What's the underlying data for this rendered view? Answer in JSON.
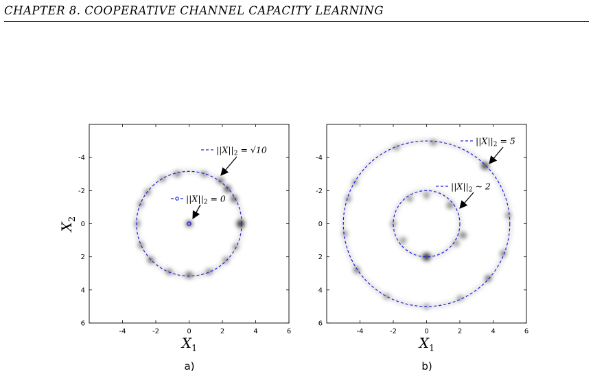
{
  "header": {
    "running_title": "CHAPTER 8.  COOPERATIVE CHANNEL CAPACITY LEARNING"
  },
  "chart_data": [
    {
      "type": "scatter",
      "panel_label": "a)",
      "title": "",
      "xlabel": "X",
      "xlabel_sub": "1",
      "ylabel": "X",
      "ylabel_sub": "2",
      "xlim": [
        -6,
        6
      ],
      "ylim": [
        -6,
        6
      ],
      "y_inverted": true,
      "xticks": [
        "-4",
        "-2",
        "0",
        "2",
        "4",
        "6"
      ],
      "yticks": [
        "-4",
        "-2",
        "0",
        "2",
        "4",
        "6"
      ],
      "grid": false,
      "density_color": "#000000",
      "circles": [
        {
          "name": "||X||2 = √10",
          "legend_main": "||X||",
          "legend_sub": "2",
          "legend_rest": " = √10",
          "radius": 3.162,
          "center": [
            0,
            0
          ],
          "style": "dashed",
          "color": "#1f1fdd"
        },
        {
          "name": "||X||2 = 0",
          "legend_main": "||X||",
          "legend_sub": "2",
          "legend_rest": " = 0",
          "radius": 0,
          "center": [
            0,
            0
          ],
          "style": "marker",
          "color": "#1f1fdd"
        }
      ],
      "density_points": [
        {
          "x": 3.1,
          "y": 0.0,
          "w": 1.0
        },
        {
          "x": 0.0,
          "y": 0.0,
          "w": 0.7
        },
        {
          "x": 2.3,
          "y": -2.1,
          "w": 0.75
        },
        {
          "x": 1.9,
          "y": -2.6,
          "w": 0.6
        },
        {
          "x": 2.7,
          "y": -1.5,
          "w": 0.7
        },
        {
          "x": 0.9,
          "y": -3.0,
          "w": 0.45
        },
        {
          "x": -0.7,
          "y": -3.0,
          "w": 0.5
        },
        {
          "x": -1.6,
          "y": -2.7,
          "w": 0.4
        },
        {
          "x": -2.5,
          "y": -1.9,
          "w": 0.45
        },
        {
          "x": -2.9,
          "y": -1.2,
          "w": 0.4
        },
        {
          "x": -3.1,
          "y": 0.0,
          "w": 0.4
        },
        {
          "x": -2.9,
          "y": 1.3,
          "w": 0.45
        },
        {
          "x": -2.3,
          "y": 2.2,
          "w": 0.6
        },
        {
          "x": -1.2,
          "y": 2.9,
          "w": 0.5
        },
        {
          "x": 0.0,
          "y": 3.1,
          "w": 0.65
        },
        {
          "x": 1.2,
          "y": 2.9,
          "w": 0.5
        },
        {
          "x": 2.2,
          "y": 2.2,
          "w": 0.45
        },
        {
          "x": 2.8,
          "y": 1.4,
          "w": 0.4
        }
      ]
    },
    {
      "type": "scatter",
      "panel_label": "b)",
      "title": "",
      "xlabel": "X",
      "xlabel_sub": "1",
      "ylabel": "",
      "ylabel_sub": "",
      "xlim": [
        -6,
        6
      ],
      "ylim": [
        -6,
        6
      ],
      "y_inverted": true,
      "xticks": [
        "-4",
        "-2",
        "0",
        "2",
        "4",
        "6"
      ],
      "yticks": [
        "-4",
        "-2",
        "0",
        "2",
        "4",
        "6"
      ],
      "grid": false,
      "density_color": "#000000",
      "circles": [
        {
          "name": "||X||2 = 5",
          "legend_main": "||X||",
          "legend_sub": "2",
          "legend_rest": " = 5",
          "radius": 5,
          "center": [
            0,
            0
          ],
          "style": "dashed",
          "color": "#1f1fdd"
        },
        {
          "name": "||X||2 ~ 2",
          "legend_main": "||X||",
          "legend_sub": "2",
          "legend_rest": " ~ 2",
          "radius": 2,
          "center": [
            0,
            0
          ],
          "style": "dashed",
          "color": "#1f1fdd"
        }
      ],
      "density_points": [
        {
          "x": 0.0,
          "y": 2.0,
          "w": 1.0
        },
        {
          "x": 3.5,
          "y": -3.5,
          "w": 0.85
        },
        {
          "x": 3.7,
          "y": 3.3,
          "w": 0.6
        },
        {
          "x": -4.2,
          "y": 2.8,
          "w": 0.55
        },
        {
          "x": -4.7,
          "y": -1.5,
          "w": 0.4
        },
        {
          "x": -4.3,
          "y": -2.5,
          "w": 0.35
        },
        {
          "x": -4.9,
          "y": 0.6,
          "w": 0.35
        },
        {
          "x": 0.4,
          "y": -4.9,
          "w": 0.45
        },
        {
          "x": -1.8,
          "y": -4.6,
          "w": 0.35
        },
        {
          "x": 4.6,
          "y": 1.8,
          "w": 0.5
        },
        {
          "x": 4.9,
          "y": -0.5,
          "w": 0.4
        },
        {
          "x": 2.0,
          "y": 4.5,
          "w": 0.35
        },
        {
          "x": -2.4,
          "y": 4.4,
          "w": 0.35
        },
        {
          "x": 0.0,
          "y": 5.0,
          "w": 0.3
        },
        {
          "x": 2.2,
          "y": 0.7,
          "w": 0.6
        },
        {
          "x": 1.4,
          "y": -1.1,
          "w": 0.55
        },
        {
          "x": 0.0,
          "y": -1.7,
          "w": 0.45
        },
        {
          "x": -1.0,
          "y": -1.5,
          "w": 0.4
        },
        {
          "x": -1.4,
          "y": 1.0,
          "w": 0.45
        },
        {
          "x": -2.0,
          "y": 0.0,
          "w": 0.35
        },
        {
          "x": 1.8,
          "y": 1.2,
          "w": 0.4
        }
      ]
    }
  ]
}
